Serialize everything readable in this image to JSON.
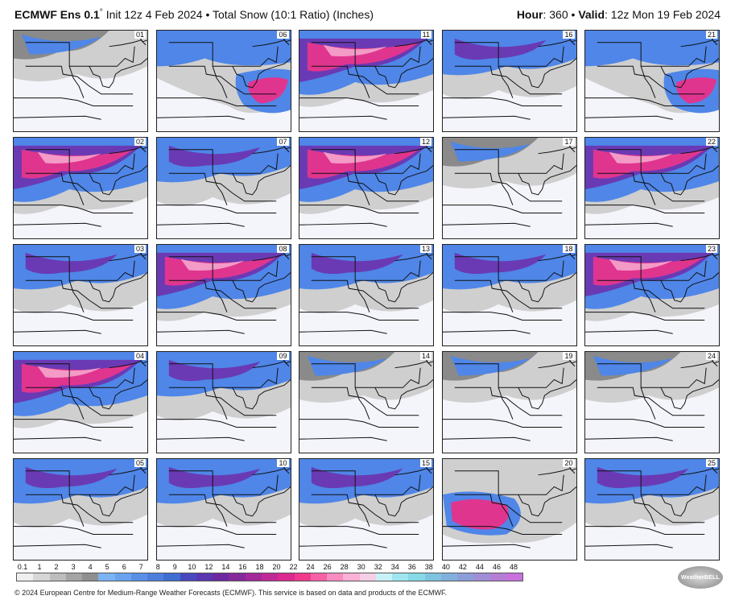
{
  "header": {
    "model": "ECMWF Ens 0.1",
    "degree": "°",
    "init": "Init 12z 4 Feb 2024",
    "sep": "•",
    "product": "Total Snow (10:1 Ratio) (Inches)",
    "hour_label": "Hour",
    "hour_value": ": 360",
    "valid_label": "Valid",
    "valid_value": ": 12z Mon 19 Feb 2024"
  },
  "panels": [
    {
      "id": "01",
      "style": "light"
    },
    {
      "id": "06",
      "style": "east"
    },
    {
      "id": "11",
      "style": "heavy"
    },
    {
      "id": "16",
      "style": "medium"
    },
    {
      "id": "21",
      "style": "east"
    },
    {
      "id": "02",
      "style": "heavy"
    },
    {
      "id": "07",
      "style": "medium"
    },
    {
      "id": "12",
      "style": "heavy"
    },
    {
      "id": "17",
      "style": "light"
    },
    {
      "id": "22",
      "style": "heavy"
    },
    {
      "id": "03",
      "style": "medium"
    },
    {
      "id": "08",
      "style": "heavy"
    },
    {
      "id": "13",
      "style": "medium"
    },
    {
      "id": "18",
      "style": "medium"
    },
    {
      "id": "23",
      "style": "heavy"
    },
    {
      "id": "04",
      "style": "heavy"
    },
    {
      "id": "09",
      "style": "medium"
    },
    {
      "id": "14",
      "style": "light"
    },
    {
      "id": "19",
      "style": "light"
    },
    {
      "id": "24",
      "style": "light"
    },
    {
      "id": "05",
      "style": "medium"
    },
    {
      "id": "10",
      "style": "medium"
    },
    {
      "id": "15",
      "style": "medium"
    },
    {
      "id": "20",
      "style": "south"
    },
    {
      "id": "25",
      "style": "medium"
    }
  ],
  "legend": {
    "ticks": [
      "0.1",
      "1",
      "2",
      "3",
      "4",
      "5",
      "6",
      "7",
      "8",
      "9",
      "10",
      "12",
      "14",
      "16",
      "18",
      "20",
      "22",
      "24",
      "26",
      "28",
      "30",
      "32",
      "34",
      "36",
      "38",
      "40",
      "42",
      "44",
      "46",
      "48"
    ],
    "colors": [
      "#efefef",
      "#d6d6d6",
      "#bdbdbd",
      "#a4a4a4",
      "#8f8f8f",
      "#7bb3f3",
      "#6aa2ee",
      "#5990e6",
      "#4c7fdc",
      "#3f6ed2",
      "#4a48c0",
      "#5a36b0",
      "#6c28a0",
      "#862a9a",
      "#a22a9a",
      "#c02a96",
      "#db2a90",
      "#f03a8c",
      "#f860a6",
      "#fa8cc2",
      "#fbb0d6",
      "#f6cfe6",
      "#c9f2f8",
      "#9fe6f0",
      "#86d9e6",
      "#7ec4e0",
      "#82b0dc",
      "#8c9ed8",
      "#a08ed6",
      "#b47ed6",
      "#c872de"
    ],
    "unit_note": ""
  },
  "logo": {
    "text": "WeatherBELL"
  },
  "footer": "© 2024 European Centre for Medium-Range Weather Forecasts (ECMWF). This service is based on data and products of the ECMWF.",
  "palette": {
    "background": "#f4f4fb",
    "light_gray": "#cfcfcf",
    "dark_gray": "#8a8a8a",
    "blue": "#4f86e8",
    "purple": "#6a3ab4",
    "magenta": "#e0358f",
    "pink": "#f39ac6",
    "border": "#111111"
  }
}
